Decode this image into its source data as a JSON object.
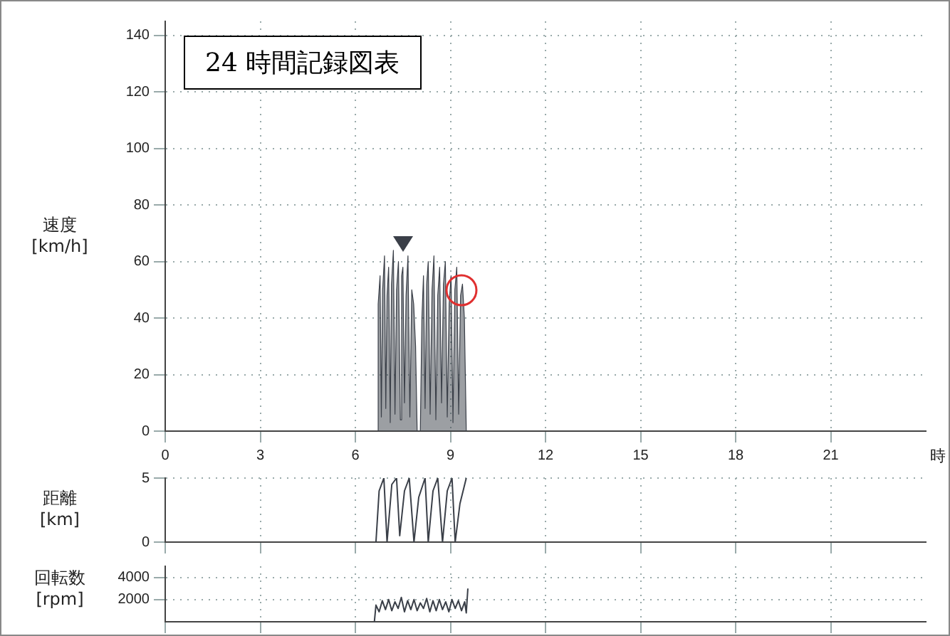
{
  "chart_data": [
    {
      "type": "area",
      "title": "24 時間記録図表",
      "ylabel": "速度\n[km/h]",
      "xlabel": "時",
      "xlim": [
        0,
        24
      ],
      "xticks": [
        0,
        3,
        6,
        9,
        12,
        15,
        18,
        21
      ],
      "ylim": [
        0,
        145
      ],
      "yticks": [
        0,
        20,
        40,
        60,
        80,
        100,
        120,
        140
      ],
      "grid": true,
      "series": [
        {
          "color": "#3a3f48",
          "x": [
            6.7,
            6.72,
            6.78,
            6.82,
            6.86,
            6.92,
            6.96,
            7.0,
            7.05,
            7.1,
            7.14,
            7.2,
            7.25,
            7.3,
            7.36,
            7.42,
            7.46,
            7.5,
            7.55,
            7.6,
            7.66,
            7.72,
            7.78,
            7.84,
            7.9,
            7.95,
            8.05,
            8.1,
            8.15,
            8.2,
            8.25,
            8.3,
            8.36,
            8.42,
            8.48,
            8.54,
            8.6,
            8.66,
            8.72,
            8.78,
            8.84,
            8.9,
            8.96,
            9.02,
            9.08,
            9.14,
            9.2,
            9.26,
            9.32,
            9.38,
            9.44,
            9.5
          ],
          "values": [
            0,
            45,
            55,
            5,
            50,
            62,
            8,
            48,
            58,
            3,
            52,
            64,
            6,
            50,
            60,
            4,
            55,
            58,
            10,
            48,
            62,
            5,
            50,
            45,
            30,
            0,
            0,
            40,
            55,
            8,
            52,
            60,
            6,
            50,
            62,
            4,
            48,
            58,
            10,
            52,
            60,
            5,
            45,
            55,
            3,
            50,
            58,
            6,
            48,
            52,
            40,
            0
          ]
        }
      ]
    },
    {
      "type": "line",
      "ylabel": "距離\n[km]",
      "xlim": [
        0,
        24
      ],
      "xticks": [
        0,
        3,
        6,
        9,
        12,
        15,
        18,
        21
      ],
      "ylim": [
        0,
        5
      ],
      "yticks": [
        0,
        5
      ],
      "grid": true,
      "tick_labels": "y",
      "series": [
        {
          "color": "#3a3f48",
          "x": [
            6.65,
            6.75,
            6.9,
            7.0,
            7.15,
            7.3,
            7.4,
            7.55,
            7.7,
            7.85,
            8.0,
            8.2,
            8.3,
            8.45,
            8.6,
            8.75,
            8.9,
            9.05,
            9.15,
            9.3,
            9.5
          ],
          "values": [
            0,
            4,
            5,
            0,
            4.5,
            5,
            0.5,
            4,
            5,
            0,
            3.5,
            5,
            0,
            4,
            5,
            0,
            4,
            5,
            0,
            3,
            5
          ]
        }
      ]
    },
    {
      "type": "line",
      "ylabel": "回転数\n[rpm]",
      "xlim": [
        0,
        24
      ],
      "xticks": [
        0,
        3,
        6,
        9,
        12,
        15,
        18,
        21
      ],
      "ylim": [
        0,
        5000
      ],
      "yticks": [
        2000,
        4000
      ],
      "grid": true,
      "tick_labels": "y",
      "series": [
        {
          "color": "#3a3f48",
          "x": [
            6.6,
            6.65,
            6.75,
            6.85,
            6.95,
            7.05,
            7.15,
            7.25,
            7.35,
            7.45,
            7.55,
            7.65,
            7.75,
            7.85,
            7.95,
            8.05,
            8.15,
            8.25,
            8.35,
            8.45,
            8.55,
            8.65,
            8.75,
            8.85,
            8.95,
            9.05,
            9.15,
            9.25,
            9.35,
            9.45,
            9.5,
            9.55
          ],
          "values": [
            0,
            1500,
            900,
            1900,
            1100,
            2000,
            1000,
            1800,
            1200,
            2200,
            900,
            1900,
            1100,
            2000,
            1000,
            1700,
            1200,
            2100,
            900,
            1900,
            1000,
            2000,
            1100,
            1800,
            900,
            2000,
            1200,
            1900,
            1000,
            1800,
            800,
            3000
          ]
        }
      ]
    }
  ]
}
